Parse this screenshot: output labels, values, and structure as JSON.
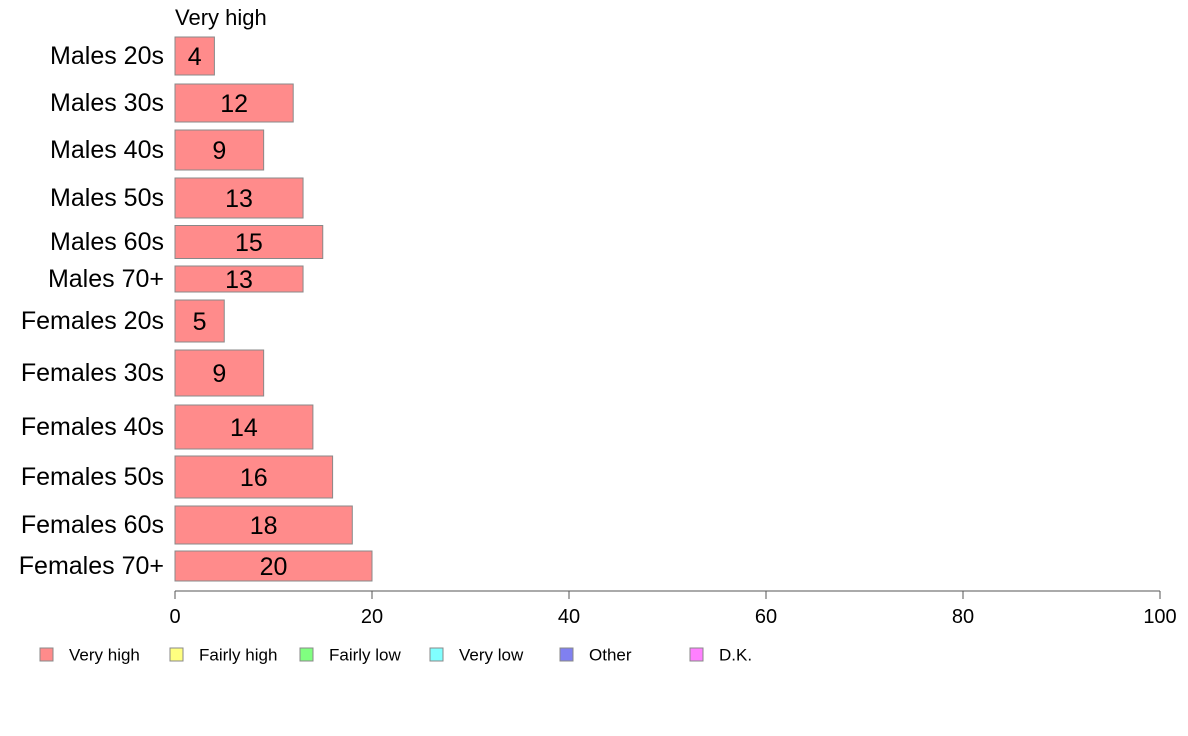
{
  "chart_data": {
    "type": "bar",
    "orientation": "horizontal",
    "stacked": true,
    "series_title": "Very high",
    "categories": [
      "Males 20s",
      "Males 30s",
      "Males 40s",
      "Males 50s",
      "Males 60s",
      "Males 70+",
      "Females 20s",
      "Females 30s",
      "Females 40s",
      "Females 50s",
      "Females 60s",
      "Females 70+"
    ],
    "series": [
      {
        "name": "Very high",
        "values": [
          4,
          12,
          9,
          13,
          15,
          13,
          5,
          9,
          14,
          16,
          18,
          20
        ]
      }
    ],
    "data_labels": [
      "4",
      "12",
      "9",
      "13",
      "15",
      "13",
      "5",
      "9",
      "14",
      "16",
      "18",
      "20"
    ],
    "xlim": [
      0,
      100
    ],
    "xticks": [
      0,
      20,
      40,
      60,
      80,
      100
    ],
    "xtick_labels": [
      "0",
      "20",
      "40",
      "60",
      "80",
      "100"
    ],
    "grid": false,
    "legend_position": "bottom-left",
    "legend": [
      {
        "label": "Very high",
        "color": "#ff8b8b"
      },
      {
        "label": "Fairly high",
        "color": "#ffff80"
      },
      {
        "label": "Fairly low",
        "color": "#80ff80"
      },
      {
        "label": "Very low",
        "color": "#80ffff"
      },
      {
        "label": "Other",
        "color": "#8080f0"
      },
      {
        "label": "D.K.",
        "color": "#ff80ff"
      }
    ],
    "bar_color": "#ff8b8b",
    "bar_edge_color": "#888888"
  }
}
